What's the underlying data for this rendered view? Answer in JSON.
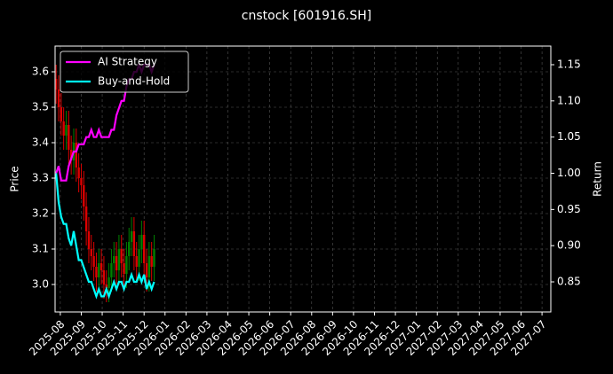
{
  "chart_data": {
    "type": "candlestick",
    "title": "cnstock [601916.SH]",
    "ylabel": "Price",
    "y2label": "Return",
    "x": [
      -0.2,
      -0.08,
      0.04,
      0.16,
      0.28,
      0.4,
      0.52,
      0.64,
      0.76,
      0.88,
      1.0,
      1.12,
      1.24,
      1.36,
      1.48,
      1.6,
      1.72,
      1.84,
      1.96,
      2.08,
      2.2,
      2.32,
      2.44,
      2.56,
      2.68,
      2.8,
      2.92,
      3.04,
      3.16,
      3.28,
      3.4,
      3.52,
      3.64,
      3.76,
      3.88,
      4.0,
      4.12,
      4.24,
      4.36,
      4.48
    ],
    "xlim": [
      -0.25,
      23.42
    ],
    "xticks": [
      {
        "value": 0,
        "label": "2025-08"
      },
      {
        "value": 1,
        "label": "2025-09"
      },
      {
        "value": 2,
        "label": "2025-10"
      },
      {
        "value": 3,
        "label": "2025-11"
      },
      {
        "value": 4,
        "label": "2025-12"
      },
      {
        "value": 5,
        "label": "2026-01"
      },
      {
        "value": 6,
        "label": "2026-02"
      },
      {
        "value": 7,
        "label": "2026-03"
      },
      {
        "value": 8,
        "label": "2026-04"
      },
      {
        "value": 9,
        "label": "2026-05"
      },
      {
        "value": 10,
        "label": "2026-06"
      },
      {
        "value": 11,
        "label": "2026-07"
      },
      {
        "value": 12,
        "label": "2026-08"
      },
      {
        "value": 13,
        "label": "2026-09"
      },
      {
        "value": 14,
        "label": "2026-10"
      },
      {
        "value": 15,
        "label": "2026-11"
      },
      {
        "value": 16,
        "label": "2026-12"
      },
      {
        "value": 17,
        "label": "2027-01"
      },
      {
        "value": 18,
        "label": "2027-02"
      },
      {
        "value": 19,
        "label": "2027-03"
      },
      {
        "value": 20,
        "label": "2027-04"
      },
      {
        "value": 21,
        "label": "2027-05"
      },
      {
        "value": 22,
        "label": "2027-06"
      },
      {
        "value": 23,
        "label": "2027-07"
      }
    ],
    "ylim": [
      2.9225,
      3.6725
    ],
    "yticks": [
      {
        "value": 3,
        "label": "3.0"
      },
      3.1,
      3.2,
      3.3,
      3.4,
      3.5,
      3.6
    ],
    "y2lim": [
      0.8084,
      1.1757
    ],
    "y2ticks": [
      0.85,
      {
        "value": 0.9,
        "label": "0.90"
      },
      0.95,
      {
        "value": 1,
        "label": "1.00"
      },
      1.05,
      {
        "value": 1.1,
        "label": "1.10"
      },
      1.15
    ],
    "candles": {
      "open": [
        3.58,
        3.55,
        3.5,
        3.46,
        3.42,
        3.45,
        3.38,
        3.35,
        3.4,
        3.33,
        3.3,
        3.28,
        3.22,
        3.15,
        3.1,
        3.08,
        3.05,
        3.02,
        3.06,
        3.04,
        3.0,
        2.99,
        3.02,
        3.06,
        3.08,
        3.04,
        3.1,
        3.06,
        3.03,
        3.08,
        3.12,
        3.15,
        3.08,
        3.05,
        3.1,
        3.14,
        3.06,
        3.02,
        3.08,
        3.05
      ],
      "high": [
        3.62,
        3.59,
        3.54,
        3.5,
        3.49,
        3.49,
        3.42,
        3.44,
        3.44,
        3.37,
        3.34,
        3.32,
        3.26,
        3.19,
        3.14,
        3.12,
        3.09,
        3.1,
        3.1,
        3.08,
        3.04,
        3.06,
        3.1,
        3.12,
        3.12,
        3.14,
        3.14,
        3.1,
        3.12,
        3.16,
        3.19,
        3.19,
        3.12,
        3.14,
        3.18,
        3.18,
        3.1,
        3.12,
        3.12,
        3.14
      ],
      "low": [
        3.51,
        3.46,
        3.42,
        3.38,
        3.38,
        3.34,
        3.31,
        3.31,
        3.29,
        3.26,
        3.24,
        3.18,
        3.11,
        3.06,
        3.04,
        3.01,
        2.98,
        2.98,
        3.0,
        2.96,
        2.95,
        2.95,
        2.98,
        3.02,
        3.0,
        3.0,
        3.02,
        2.99,
        2.99,
        3.04,
        3.08,
        3.04,
        3.01,
        3.01,
        3.06,
        3.02,
        2.98,
        2.98,
        3.01,
        3.01
      ],
      "close": [
        3.55,
        3.5,
        3.46,
        3.42,
        3.45,
        3.38,
        3.35,
        3.4,
        3.33,
        3.3,
        3.28,
        3.22,
        3.15,
        3.1,
        3.08,
        3.05,
        3.02,
        3.06,
        3.04,
        3.0,
        2.99,
        3.02,
        3.06,
        3.08,
        3.04,
        3.1,
        3.06,
        3.03,
        3.08,
        3.12,
        3.15,
        3.08,
        3.05,
        3.1,
        3.14,
        3.06,
        3.02,
        3.08,
        3.05,
        3.1
      ],
      "up_color": "#008000",
      "down_color": "#dd0000"
    },
    "series": [
      {
        "name": "AI Strategy",
        "color": "#ff00ff",
        "axis": "y2",
        "values": [
          1.0,
          1.01,
          0.99,
          0.99,
          0.99,
          1.01,
          1.02,
          1.03,
          1.03,
          1.04,
          1.04,
          1.04,
          1.05,
          1.05,
          1.06,
          1.05,
          1.05,
          1.06,
          1.05,
          1.05,
          1.05,
          1.05,
          1.06,
          1.06,
          1.08,
          1.09,
          1.1,
          1.1,
          1.12,
          1.13,
          1.13,
          1.14,
          1.14,
          1.15,
          1.14,
          1.15,
          1.15,
          1.15,
          1.14,
          1.15
        ]
      },
      {
        "name": "Buy-and-Hold",
        "color": "#00ffff",
        "axis": "y2",
        "values": [
          1.0,
          0.96,
          0.94,
          0.93,
          0.93,
          0.91,
          0.9,
          0.92,
          0.9,
          0.88,
          0.88,
          0.87,
          0.86,
          0.85,
          0.85,
          0.84,
          0.83,
          0.84,
          0.83,
          0.83,
          0.84,
          0.83,
          0.84,
          0.85,
          0.84,
          0.85,
          0.85,
          0.84,
          0.85,
          0.85,
          0.86,
          0.85,
          0.85,
          0.86,
          0.85,
          0.86,
          0.84,
          0.85,
          0.84,
          0.85
        ]
      }
    ],
    "grid": true,
    "legend": "upper left"
  }
}
